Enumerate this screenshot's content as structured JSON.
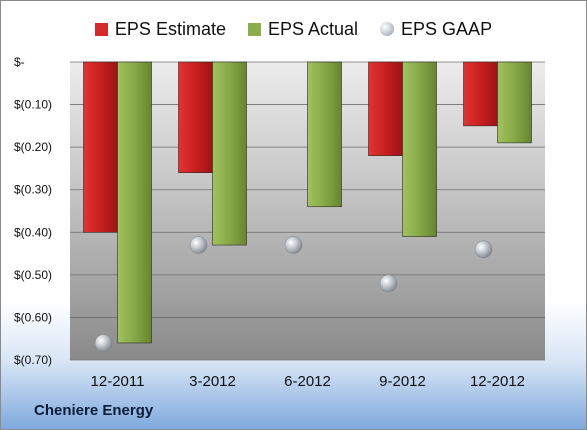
{
  "chart_data": {
    "type": "bar",
    "categories": [
      "12-2011",
      "3-2012",
      "6-2012",
      "9-2012",
      "12-2012"
    ],
    "series": [
      {
        "name": "EPS Estimate",
        "kind": "bar",
        "color": "#d42a2a",
        "values": [
          -0.4,
          -0.26,
          null,
          -0.22,
          -0.15
        ]
      },
      {
        "name": "EPS Actual",
        "kind": "bar",
        "color": "#8cad4c",
        "values": [
          -0.66,
          -0.43,
          -0.34,
          -0.41,
          -0.19
        ]
      },
      {
        "name": "EPS GAAP",
        "kind": "point",
        "color": "#c9cdd2",
        "values": [
          -0.66,
          -0.43,
          -0.43,
          -0.52,
          -0.44
        ]
      }
    ],
    "ylim": [
      -0.7,
      0
    ],
    "yticks": [
      0,
      -0.1,
      -0.2,
      -0.3,
      -0.4,
      -0.5,
      -0.6,
      -0.7
    ],
    "ytick_labels": [
      "$-",
      "$(0.10)",
      "$(0.20)",
      "$(0.30)",
      "$(0.40)",
      "$(0.50)",
      "$(0.60)",
      "$(0.70)"
    ],
    "grid": true,
    "legend_position": "top"
  },
  "legend": {
    "estimate": "EPS Estimate",
    "actual": "EPS Actual",
    "gaap": "EPS GAAP"
  },
  "company": "Cheniere Energy"
}
